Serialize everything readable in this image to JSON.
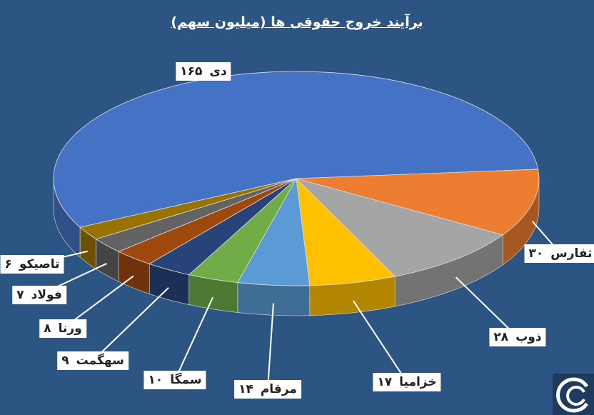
{
  "chart_data": {
    "type": "pie3d",
    "title": "برآیند خروج حقوقی ها (میلیون سهم)",
    "categories": [
      "دی",
      "ثفارس",
      "ذوب",
      "خزامیا",
      "مرقام",
      "سمگا",
      "سهگمت",
      "ورنا",
      "فولاد",
      "تاصیکو"
    ],
    "values": [
      165,
      30,
      28,
      17,
      14,
      10,
      9,
      8,
      7,
      6
    ],
    "value_labels": [
      "۱۶۵",
      "۳۰",
      "۲۸",
      "۱۷",
      "۱۴",
      "۱۰",
      "۹",
      "۸",
      "۷",
      "۶"
    ],
    "colors": [
      "#4472c4",
      "#ed7d31",
      "#a5a5a5",
      "#ffc000",
      "#5b9bd5",
      "#70ad47",
      "#264478",
      "#9e480e",
      "#636363",
      "#997300"
    ]
  }
}
